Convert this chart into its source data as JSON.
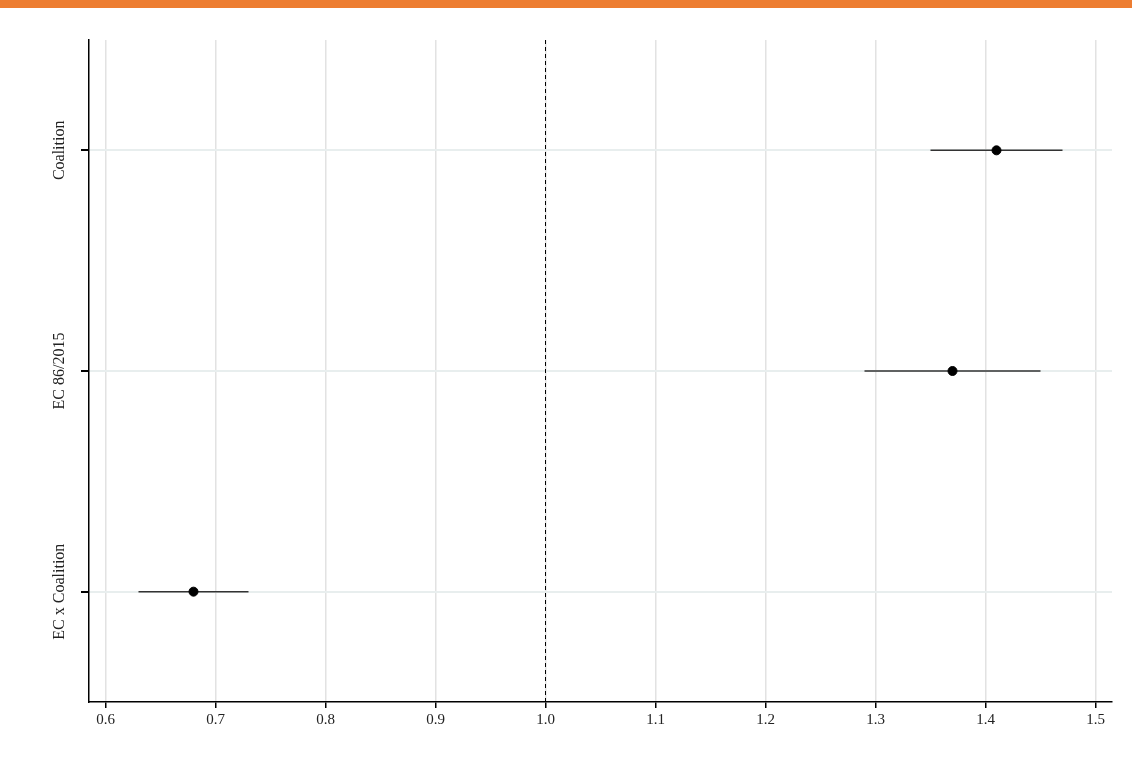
{
  "chart_data": {
    "type": "scatter",
    "orientation": "horizontal",
    "marker": "circle",
    "grid": true,
    "categories": [
      "Coalition",
      "EC 86/2015",
      "EC x Coalition"
    ],
    "values": [
      1.41,
      1.37,
      0.68
    ],
    "errors": [
      [
        1.35,
        1.47
      ],
      [
        1.29,
        1.45
      ],
      [
        0.63,
        0.73
      ]
    ],
    "color": "#000000",
    "xlim": [
      0.585,
      1.515
    ],
    "xticks": [
      {
        "value": 0.6,
        "label": "0.6"
      },
      {
        "value": 0.7,
        "label": "0.7"
      },
      {
        "value": 0.8,
        "label": "0.8"
      },
      {
        "value": 0.9,
        "label": "0.9"
      },
      {
        "value": 1.0,
        "label": "1.0"
      },
      {
        "value": 1.1,
        "label": "1.1"
      },
      {
        "value": 1.2,
        "label": "1.2"
      },
      {
        "value": 1.3,
        "label": "1.3"
      },
      {
        "value": 1.4,
        "label": "1.4"
      },
      {
        "value": 1.5,
        "label": "1.5"
      }
    ],
    "ref_lines": [
      {
        "axis": "x",
        "value": 1.0,
        "line_style": "dashed",
        "color": "#000000"
      }
    ]
  }
}
